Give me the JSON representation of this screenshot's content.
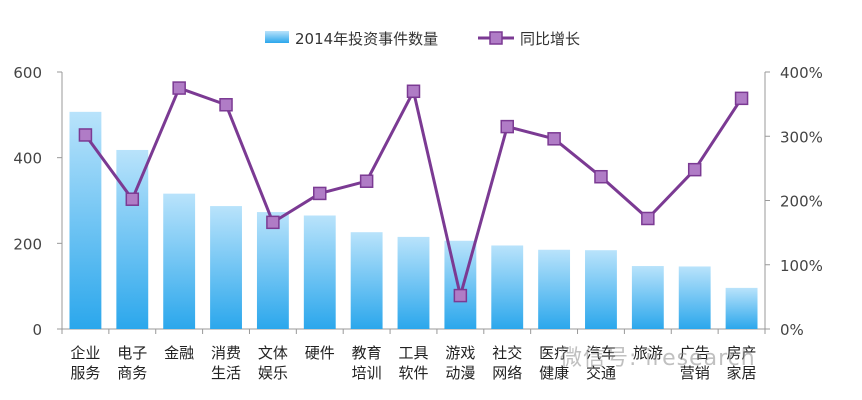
{
  "chart_data": {
    "type": "bar+line",
    "title": "",
    "categories": [
      [
        "企业",
        "服务"
      ],
      [
        "电子",
        "商务"
      ],
      [
        "金融"
      ],
      [
        "消费",
        "生活"
      ],
      [
        "文体",
        "娱乐"
      ],
      [
        "硬件"
      ],
      [
        "教育",
        "培训"
      ],
      [
        "工具",
        "软件"
      ],
      [
        "游戏",
        "动漫"
      ],
      [
        "社交",
        "网络"
      ],
      [
        "医疗",
        "健康"
      ],
      [
        "汽车",
        "交通"
      ],
      [
        "旅游"
      ],
      [
        "广告",
        "营销"
      ],
      [
        "房产",
        "家居"
      ]
    ],
    "series": [
      {
        "name": "2014年投资事件数量",
        "kind": "bar",
        "axis": "left",
        "values": [
          507,
          418,
          316,
          287,
          273,
          265,
          226,
          215,
          206,
          195,
          185,
          184,
          147,
          146,
          96
        ]
      },
      {
        "name": "同比增长",
        "kind": "line",
        "axis": "right",
        "values": [
          302,
          202,
          375,
          349,
          166,
          211,
          230,
          370,
          52,
          315,
          296,
          237,
          172,
          248,
          359
        ]
      }
    ],
    "y_left": {
      "min": 0,
      "max": 600,
      "ticks": [
        "0",
        "200",
        "400",
        "600"
      ]
    },
    "y_right": {
      "min": 0,
      "max": 400,
      "ticks": [
        "0%",
        "100%",
        "200%",
        "300%",
        "400%"
      ]
    },
    "legend_position": "top-center",
    "grid": false,
    "colors": {
      "bar_top": "#b9e3fb",
      "bar_bottom": "#2ba7ec",
      "line": "#7b3a93",
      "marker": "#b07cc6"
    }
  },
  "watermark": "微信号: iresearch"
}
